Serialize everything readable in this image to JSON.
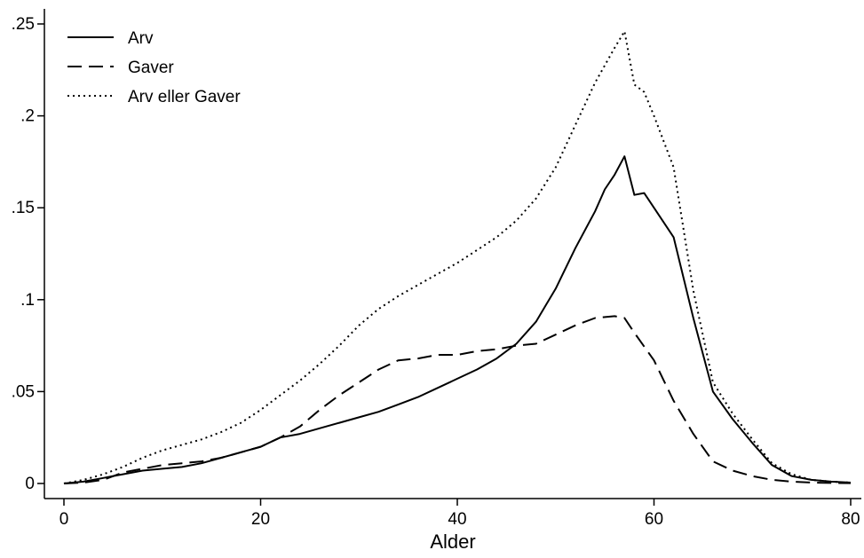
{
  "chart_data": {
    "type": "line",
    "title": "",
    "xlabel": "Alder",
    "ylabel": "",
    "xlim": [
      0,
      80
    ],
    "ylim": [
      0,
      0.25
    ],
    "xticks": [
      0,
      20,
      40,
      60,
      80
    ],
    "xtick_labels": [
      "0",
      "20",
      "40",
      "60",
      "80"
    ],
    "yticks": [
      0,
      0.05,
      0.1,
      0.15,
      0.2,
      0.25
    ],
    "ytick_labels": [
      "0",
      ".05",
      ".1",
      ".15",
      ".2",
      ".25"
    ],
    "grid": false,
    "legend_position": "top-left",
    "series": [
      {
        "name": "Arv",
        "style": "solid",
        "color": "#000000",
        "x": [
          0,
          2,
          4,
          6,
          8,
          10,
          12,
          14,
          16,
          18,
          20,
          22,
          24,
          26,
          28,
          30,
          32,
          34,
          36,
          38,
          40,
          42,
          44,
          46,
          48,
          49,
          50,
          52,
          54,
          55,
          56,
          57,
          58,
          59,
          60,
          62,
          64,
          66,
          68,
          70,
          72,
          74,
          76,
          78,
          80
        ],
        "y": [
          0,
          0.001,
          0.003,
          0.005,
          0.007,
          0.008,
          0.009,
          0.011,
          0.014,
          0.017,
          0.02,
          0.025,
          0.027,
          0.03,
          0.033,
          0.036,
          0.039,
          0.043,
          0.047,
          0.052,
          0.057,
          0.062,
          0.068,
          0.076,
          0.088,
          0.097,
          0.106,
          0.128,
          0.148,
          0.16,
          0.168,
          0.178,
          0.157,
          0.158,
          0.15,
          0.134,
          0.09,
          0.05,
          0.035,
          0.022,
          0.01,
          0.004,
          0.002,
          0.001,
          0.0005
        ]
      },
      {
        "name": "Gaver",
        "style": "dashed",
        "color": "#000000",
        "x": [
          0,
          2,
          4,
          6,
          8,
          10,
          12,
          14,
          16,
          18,
          20,
          22,
          24,
          26,
          28,
          30,
          32,
          34,
          36,
          38,
          40,
          42,
          44,
          46,
          48,
          50,
          52,
          54,
          56,
          57,
          58,
          60,
          62,
          64,
          66,
          68,
          70,
          72,
          74,
          76,
          78,
          80
        ],
        "y": [
          0,
          0.0005,
          0.002,
          0.006,
          0.008,
          0.01,
          0.011,
          0.012,
          0.014,
          0.017,
          0.02,
          0.025,
          0.031,
          0.04,
          0.048,
          0.055,
          0.062,
          0.067,
          0.068,
          0.07,
          0.07,
          0.072,
          0.073,
          0.075,
          0.076,
          0.081,
          0.086,
          0.09,
          0.091,
          0.09,
          0.082,
          0.067,
          0.045,
          0.027,
          0.012,
          0.007,
          0.004,
          0.002,
          0.001,
          0.0005,
          0.0003,
          0.0002
        ]
      },
      {
        "name": "Arv eller Gaver",
        "style": "dotted",
        "color": "#000000",
        "x": [
          0,
          2,
          4,
          6,
          8,
          10,
          12,
          14,
          16,
          18,
          20,
          22,
          24,
          26,
          28,
          30,
          32,
          34,
          36,
          38,
          40,
          42,
          44,
          46,
          48,
          50,
          52,
          54,
          56,
          57,
          58,
          59,
          60,
          62,
          64,
          66,
          68,
          70,
          72,
          74,
          76,
          78,
          80
        ],
        "y": [
          0,
          0.002,
          0.005,
          0.009,
          0.014,
          0.018,
          0.021,
          0.024,
          0.028,
          0.033,
          0.04,
          0.048,
          0.056,
          0.065,
          0.075,
          0.086,
          0.095,
          0.102,
          0.108,
          0.114,
          0.12,
          0.127,
          0.134,
          0.143,
          0.155,
          0.172,
          0.195,
          0.218,
          0.237,
          0.246,
          0.217,
          0.213,
          0.2,
          0.172,
          0.105,
          0.055,
          0.038,
          0.024,
          0.011,
          0.005,
          0.002,
          0.001,
          0.0005
        ]
      }
    ]
  }
}
